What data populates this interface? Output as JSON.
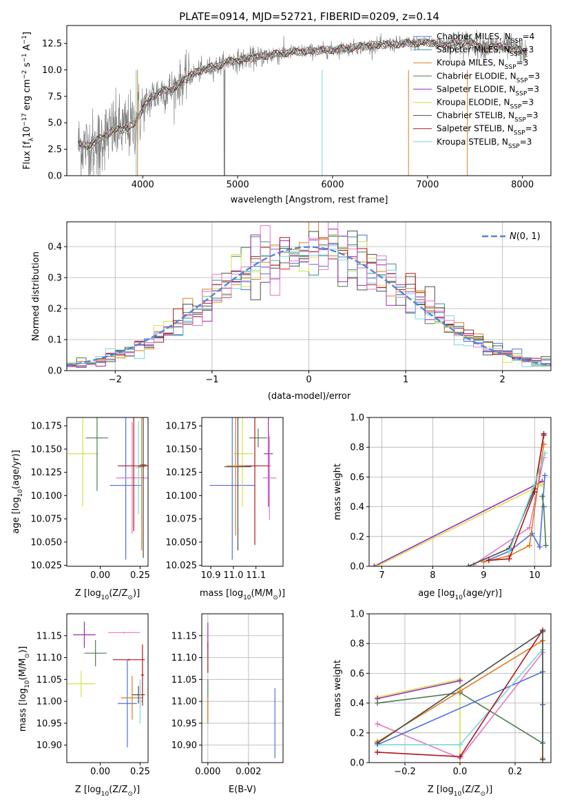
{
  "figure_title": "PLATE=0914, MJD=52721, FIBERID=0209, z=0.14",
  "colors": {
    "Chabrier MILES": "#4f6fd8",
    "Salpeter MILES": "#2f8f8f",
    "Kroupa MILES": "#e07b1a",
    "Chabrier ELODIE": "#4c7a50",
    "Salpeter ELODIE": "#9c27b0",
    "Kroupa ELODIE": "#d6e04a",
    "Chabrier STELIB": "#4a4a4a",
    "Salpeter STELIB": "#b0121b",
    "Kroupa STELIB": "#79d6dc",
    "data": "#808080",
    "extra_pink": "#e377c2",
    "gaussian": "#4f86d6"
  },
  "chart_data": [
    {
      "id": "spectrum",
      "type": "line",
      "title": "PLATE=0914, MJD=52721, FIBERID=0209, z=0.14",
      "xlabel": "wavelength [Angstrom, rest frame]",
      "ylabel": "Flux [f",
      "ylabel_sub": "λ",
      "ylabel_rest": "10",
      "ylabel_exp": "−17",
      "ylabel_units": " erg cm",
      "xlim": [
        3200,
        8300
      ],
      "ylim": [
        0,
        14.2
      ],
      "xticks": [
        4000,
        5000,
        6000,
        7000,
        8000
      ],
      "yticks": [
        0.0,
        2.5,
        5.0,
        7.5,
        10.0,
        12.5
      ],
      "ytick_labels": [
        "0.0",
        "2.5",
        "5.0",
        "7.5",
        "10.0",
        "12.5"
      ],
      "continuum": {
        "x": [
          3300,
          3400,
          3500,
          3600,
          3700,
          3800,
          3900,
          4000,
          4100,
          4200,
          4300,
          4400,
          4500,
          4600,
          4700,
          4800,
          4900,
          5000,
          5200,
          5400,
          5600,
          5800,
          6000,
          6200,
          6400,
          6600,
          6800,
          7000,
          7200,
          7400,
          7600,
          7800,
          8000,
          8050
        ],
        "y": [
          3.0,
          2.8,
          3.2,
          3.8,
          4.3,
          4.4,
          4.8,
          6.3,
          7.5,
          8.0,
          8.1,
          8.8,
          9.5,
          9.9,
          10.2,
          10.4,
          10.8,
          10.9,
          11.2,
          11.5,
          11.7,
          11.8,
          11.9,
          12.1,
          12.3,
          12.4,
          12.5,
          12.6,
          12.4,
          12.6,
          12.2,
          12.2,
          11.8,
          11.6
        ]
      },
      "legend_position": "top-right",
      "legend": [
        {
          "base": "Chabrier MILES, N",
          "n": "4"
        },
        {
          "base": "Salpeter MILES, N",
          "n": "3"
        },
        {
          "base": "Kroupa MILES, N",
          "n": "3"
        },
        {
          "base": "Chabrier ELODIE, N",
          "n": "3"
        },
        {
          "base": "Salpeter ELODIE, N",
          "n": "3"
        },
        {
          "base": "Kroupa ELODIE, N",
          "n": "3"
        },
        {
          "base": "Chabrier STELIB, N",
          "n": "3"
        },
        {
          "base": "Salpeter STELIB, N",
          "n": "3"
        },
        {
          "base": "Kroupa STELIB, N",
          "n": "3"
        }
      ],
      "legend_sub": "SSP"
    },
    {
      "id": "residual_histogram",
      "type": "bar",
      "xlabel": "(data-model)/error",
      "ylabel": "Normed distribution",
      "xlim": [
        -2.5,
        2.5
      ],
      "ylim": [
        0,
        0.48
      ],
      "xticks": [
        -2,
        -1,
        0,
        1,
        2
      ],
      "xtick_labels": [
        "−2",
        "−1",
        "0",
        "1",
        "2"
      ],
      "yticks": [
        0.0,
        0.1,
        0.2,
        0.3,
        0.4
      ],
      "ytick_labels": [
        "0.0",
        "0.1",
        "0.2",
        "0.3",
        "0.4"
      ],
      "bin_width": 0.1,
      "legend": "N(0,1)",
      "legend_position": "top-right"
    },
    {
      "id": "age_vs_Z",
      "type": "scatter",
      "xlabel": "Z [log",
      "xlabel_tail": "(Z/Z",
      "ylabel": "age  [log",
      "ylabel_tail": "(age/yr)]",
      "xlim": [
        -0.21,
        0.3
      ],
      "ylim": [
        10.024,
        10.184
      ],
      "xticks": [
        0.0,
        0.25
      ],
      "xtick_labels": [
        "0.00",
        "0.25"
      ],
      "yticks": [
        10.025,
        10.05,
        10.075,
        10.1,
        10.125,
        10.15,
        10.175
      ],
      "ytick_labels": [
        "10.025",
        "10.050",
        "10.075",
        "10.100",
        "10.125",
        "10.150",
        "10.175"
      ],
      "points": [
        {
          "series": "Kroupa ELODIE",
          "x": -0.11,
          "y": 10.145,
          "xerr": 0.1,
          "yerr": 0.057
        },
        {
          "series": "Chabrier ELODIE",
          "x": -0.02,
          "y": 10.162,
          "xerr": 0.07,
          "yerr": 0.057
        },
        {
          "series": "Chabrier MILES",
          "x": 0.16,
          "y": 10.111,
          "xerr": 0.1,
          "yerr": 0.08
        },
        {
          "series": "extra_pink",
          "x": 0.2,
          "y": 10.119,
          "xerr": 0.1,
          "yerr": 0.06
        },
        {
          "series": "Kroupa STELIB",
          "x": 0.24,
          "y": 10.13,
          "xerr": 0.02,
          "yerr": 0.05
        },
        {
          "series": "Salpeter STELIB",
          "x": 0.21,
          "y": 10.132,
          "xerr": 0.1,
          "yerr": 0.07
        },
        {
          "series": "Kroupa MILES",
          "x": 0.26,
          "y": 10.131,
          "xerr": 0.02,
          "yerr": 0.09
        },
        {
          "series": "Chabrier STELIB",
          "x": 0.27,
          "y": 10.133,
          "xerr": 0.02,
          "yerr": 0.1
        }
      ]
    },
    {
      "id": "age_vs_mass",
      "type": "scatter",
      "xlabel": "mass [log",
      "xlabel_tail": "(M/M",
      "xlim": [
        10.86,
        11.22
      ],
      "ylim": [
        10.024,
        10.184
      ],
      "xticks": [
        10.9,
        11.0,
        11.1
      ],
      "xtick_labels": [
        "10.9",
        "11.0",
        "11.1"
      ],
      "yticks": [
        10.025,
        10.05,
        10.075,
        10.1,
        10.125,
        10.15,
        10.175
      ],
      "ytick_labels": [
        "10.025",
        "10.050",
        "10.075",
        "10.100",
        "10.125",
        "10.150",
        "10.175"
      ],
      "points": [
        {
          "series": "Chabrier MILES",
          "x": 10.995,
          "y": 10.111,
          "xerr": 0.1,
          "yerr": 0.08
        },
        {
          "series": "Kroupa ELODIE",
          "x": 11.04,
          "y": 10.145,
          "xerr": 0.05,
          "yerr": 0.057
        },
        {
          "series": "Chabrier ELODIE",
          "x": 11.11,
          "y": 10.162,
          "xerr": 0.04,
          "yerr": 0.01
        },
        {
          "series": "Salpeter STELIB",
          "x": 11.095,
          "y": 10.132,
          "xerr": 0.07,
          "yerr": 0.085
        },
        {
          "series": "Chabrier STELIB",
          "x": 11.02,
          "y": 10.131,
          "xerr": 0.06,
          "yerr": 0.09
        },
        {
          "series": "Kroupa MILES",
          "x": 11.01,
          "y": 10.132,
          "xerr": 0.04,
          "yerr": 0.075
        },
        {
          "series": "Salpeter ELODIE",
          "x": 11.155,
          "y": 10.145,
          "xerr": 0.02,
          "yerr": 0.057
        },
        {
          "series": "extra_pink",
          "x": 11.16,
          "y": 10.119,
          "xerr": 0.03,
          "yerr": 0.045
        }
      ]
    },
    {
      "id": "mass_weight_vs_age",
      "type": "line",
      "xlabel": "age  [log",
      "xlabel_tail": "(age/yr)]",
      "ylabel": "mass weight",
      "xlim": [
        6.75,
        10.32
      ],
      "ylim": [
        0,
        1.0
      ],
      "xticks": [
        7,
        8,
        9,
        10
      ],
      "yticks": [
        0.0,
        0.2,
        0.4,
        0.6,
        0.8,
        1.0
      ],
      "ytick_labels": [
        "0.0",
        "0.2",
        "0.4",
        "0.6",
        "0.8",
        "1.0"
      ],
      "series": [
        {
          "name": "Salpeter ELODIE",
          "x": [
            6.85,
            10.15
          ],
          "y": [
            0.0,
            0.57
          ]
        },
        {
          "name": "Kroupa ELODIE",
          "x": [
            6.9,
            10.15
          ],
          "y": [
            0.0,
            0.55
          ]
        },
        {
          "name": "extra_pink",
          "x": [
            8.8,
            9.9,
            10.18
          ],
          "y": [
            0.01,
            0.26,
            0.73
          ]
        },
        {
          "name": "Chabrier MILES",
          "x": [
            9.0,
            9.5,
            9.95,
            10.1,
            10.2
          ],
          "y": [
            0.03,
            0.1,
            0.22,
            0.13,
            0.61
          ]
        },
        {
          "name": "Kroupa MILES",
          "x": [
            9.0,
            9.5,
            9.9,
            10.18
          ],
          "y": [
            0.03,
            0.07,
            0.14,
            0.82
          ]
        },
        {
          "name": "Chabrier STELIB",
          "x": [
            8.7,
            9.5,
            10.0,
            10.18
          ],
          "y": [
            0.0,
            0.12,
            0.52,
            0.88
          ]
        },
        {
          "name": "Salpeter STELIB",
          "x": [
            9.1,
            9.5,
            10.0,
            10.18
          ],
          "y": [
            0.04,
            0.05,
            0.5,
            0.89
          ]
        },
        {
          "name": "Kroupa STELIB",
          "x": [
            9.5,
            10.0,
            10.2
          ],
          "y": [
            0.1,
            0.55,
            0.76
          ]
        },
        {
          "name": "Chabrier ELODIE",
          "x": [
            10.15,
            10.18,
            10.22
          ],
          "y": [
            0.47,
            0.4,
            0.14
          ]
        }
      ]
    },
    {
      "id": "mass_vs_Z",
      "type": "scatter",
      "xlabel": "Z [log",
      "xlabel_tail": "(Z/Z",
      "ylabel": "mass [log",
      "ylabel_tail": "(M/M",
      "xlim": [
        -0.21,
        0.3
      ],
      "ylim": [
        10.86,
        11.2
      ],
      "xticks": [
        0.0,
        0.25
      ],
      "xtick_labels": [
        "0.00",
        "0.25"
      ],
      "yticks": [
        10.9,
        10.95,
        11.0,
        11.05,
        11.1,
        11.15
      ],
      "ytick_labels": [
        "10.90",
        "10.95",
        "11.00",
        "11.05",
        "11.10",
        "11.15"
      ],
      "points": [
        {
          "series": "Salpeter ELODIE",
          "x": -0.1,
          "y": 11.152,
          "xerr": 0.07,
          "yerr": 0.03
        },
        {
          "series": "Chabrier ELODIE",
          "x": -0.03,
          "y": 11.11,
          "xerr": 0.07,
          "yerr": 0.03
        },
        {
          "series": "Kroupa ELODIE",
          "x": -0.12,
          "y": 11.04,
          "xerr": 0.09,
          "yerr": 0.03
        },
        {
          "series": "extra_pink",
          "x": 0.15,
          "y": 11.157,
          "xerr": 0.1,
          "yerr": 0.002
        },
        {
          "series": "Salpeter STELIB",
          "x": 0.18,
          "y": 11.095,
          "xerr": 0.1,
          "yerr": 0.002
        },
        {
          "series": "Chabrier MILES",
          "x": 0.17,
          "y": 10.995,
          "xerr": 0.06,
          "yerr": 0.1
        },
        {
          "series": "Kroupa MILES",
          "x": 0.2,
          "y": 11.008,
          "xerr": 0.07,
          "yerr": 0.05
        },
        {
          "series": "Chabrier STELIB",
          "x": 0.24,
          "y": 11.015,
          "xerr": 0.04,
          "yerr": 0.02
        },
        {
          "series": "Kroupa STELIB",
          "x": 0.25,
          "y": 11.0,
          "xerr": 0.02,
          "yerr": 0.05
        },
        {
          "series": "Salpeter STELIB",
          "x": 0.265,
          "y": 11.06,
          "xerr": 0.01,
          "yerr": 0.07
        }
      ]
    },
    {
      "id": "mass_vs_ebv",
      "type": "scatter",
      "xlabel": "E(B-V)",
      "xlim": [
        -0.0003,
        0.0037
      ],
      "ylim": [
        10.86,
        11.2
      ],
      "xticks": [
        0.0,
        0.002
      ],
      "xtick_labels": [
        "0.000",
        "0.002"
      ],
      "yticks": [
        10.9,
        10.95,
        11.0,
        11.05,
        11.1,
        11.15
      ],
      "ytick_labels": [
        "10.90",
        "10.95",
        "11.00",
        "11.05",
        "11.10",
        "11.15"
      ],
      "points": [
        {
          "series": "Salpeter ELODIE",
          "x": 0.0,
          "y": 11.15,
          "xerr": 0,
          "yerr": 0.03
        },
        {
          "series": "Salpeter STELIB",
          "x": 0.0,
          "y": 11.1,
          "xerr": 0,
          "yerr": 0.035
        },
        {
          "series": "Chabrier ELODIE",
          "x": 0.0,
          "y": 11.0,
          "xerr": 0,
          "yerr": 0.05
        },
        {
          "series": "Kroupa MILES",
          "x": 0.0,
          "y": 10.98,
          "xerr": 0,
          "yerr": 0.03
        },
        {
          "series": "Chabrier MILES",
          "x": 0.0033,
          "y": 10.95,
          "xerr": 0,
          "yerr": 0.08
        }
      ]
    },
    {
      "id": "mass_weight_vs_Z",
      "type": "line",
      "xlabel": "Z [log",
      "xlabel_tail": "(Z/Z",
      "ylabel": "mass weight",
      "xlim": [
        -0.33,
        0.33
      ],
      "ylim": [
        0,
        1.0
      ],
      "xticks": [
        -0.2,
        0.0,
        0.2
      ],
      "xtick_labels": [
        "−0.2",
        "0.0",
        "0.2"
      ],
      "yticks": [
        0.0,
        0.2,
        0.4,
        0.6,
        0.8,
        1.0
      ],
      "ytick_labels": [
        "0.0",
        "0.2",
        "0.4",
        "0.6",
        "0.8",
        "1.0"
      ],
      "series": [
        {
          "name": "Kroupa ELODIE",
          "x": [
            -0.3,
            0.0,
            0.0
          ],
          "y": [
            0.44,
            0.56,
            0.0
          ]
        },
        {
          "name": "Salpeter ELODIE",
          "x": [
            -0.3,
            0.0
          ],
          "y": [
            0.43,
            0.55
          ]
        },
        {
          "name": "Chabrier ELODIE",
          "x": [
            -0.3,
            0.0,
            0.3
          ],
          "y": [
            0.4,
            0.47,
            0.13
          ]
        },
        {
          "name": "extra_pink",
          "x": [
            -0.3,
            0.0,
            0.3
          ],
          "y": [
            0.26,
            0.03,
            0.74
          ]
        },
        {
          "name": "Kroupa MILES",
          "x": [
            -0.3,
            0.0,
            0.3,
            0.3
          ],
          "y": [
            0.14,
            0.48,
            0.82,
            0.03
          ]
        },
        {
          "name": "Chabrier MILES",
          "x": [
            -0.3,
            0.3,
            0.3
          ],
          "y": [
            0.12,
            0.61,
            0.39
          ]
        },
        {
          "name": "Kroupa STELIB",
          "x": [
            -0.3,
            0.0,
            0.3,
            0.3
          ],
          "y": [
            0.12,
            0.12,
            0.76,
            0.14
          ]
        },
        {
          "name": "Salpeter STELIB",
          "x": [
            -0.3,
            0.0,
            0.3
          ],
          "y": [
            0.07,
            0.04,
            0.89
          ]
        },
        {
          "name": "Chabrier STELIB",
          "x": [
            -0.3,
            0.3,
            0.3
          ],
          "y": [
            0.13,
            0.88,
            0.02
          ]
        }
      ]
    }
  ]
}
